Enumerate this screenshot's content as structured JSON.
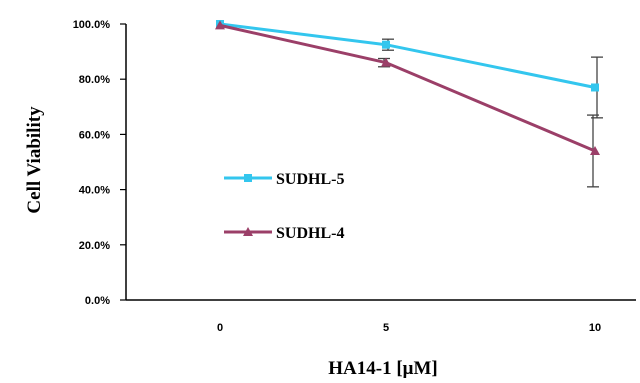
{
  "chart_data": {
    "type": "line",
    "xlabel": "HA14-1 [μM]",
    "ylabel": "Cell Viability",
    "categories": [
      "0",
      "5",
      "10"
    ],
    "yticks": [
      "0.0%",
      "20.0%",
      "40.0%",
      "60.0%",
      "80.0%",
      "100.0%"
    ],
    "ylim": [
      0,
      100
    ],
    "grid": false,
    "legend_position": "left-center",
    "series": [
      {
        "name": "SUDHL-5",
        "values": [
          100,
          92.5,
          77
        ],
        "errors": [
          0,
          2,
          11
        ],
        "color": "#33c6ee",
        "marker": "square"
      },
      {
        "name": "SUDHL-4",
        "values": [
          99.5,
          86,
          54
        ],
        "errors": [
          0,
          1.5,
          13
        ],
        "color": "#9b3f68",
        "marker": "triangle"
      }
    ]
  }
}
